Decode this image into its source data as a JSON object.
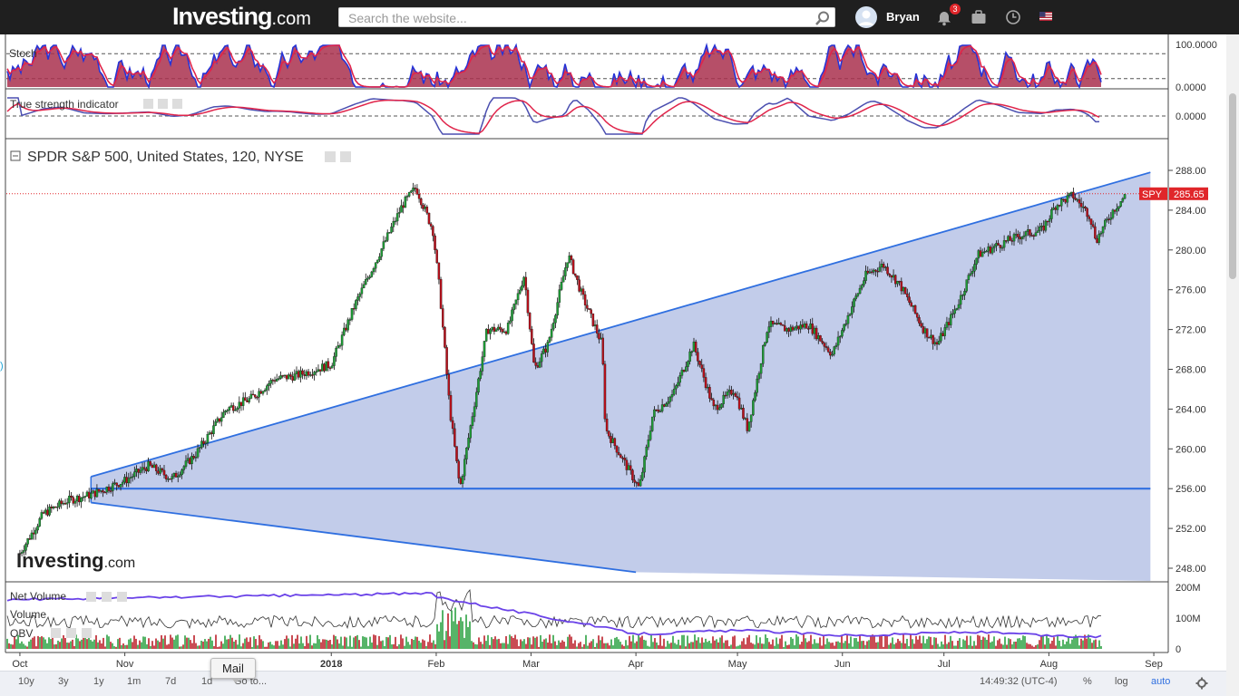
{
  "site": {
    "logo_text": "Investing",
    "logo_suffix": ".com",
    "search_placeholder": "Search the website...",
    "username": "Bryan",
    "notifications_count": "3"
  },
  "panes": {
    "stoch_label": "Stoch",
    "stoch_scale": [
      "100.0000",
      "0.0000"
    ],
    "tsi_label": "True strength indicator",
    "tsi_scale": "0.0000",
    "main_label": "SPDR S&P 500, United States, 120, NYSE",
    "net_volume_label": "Net Volume",
    "volume_label": "Volume",
    "obv_label": "OBV",
    "vol_scale": [
      "200M",
      "100M",
      "0"
    ],
    "watermark": "Investing",
    "watermark_suffix": ".com"
  },
  "bottom": {
    "ranges": [
      "10y",
      "3y",
      "1y",
      "1m",
      "7d",
      "1d",
      "Go to..."
    ],
    "time": "14:49:32 (UTC-4)",
    "pct": "%",
    "log": "log",
    "auto": "auto",
    "tooltip": "Mail"
  },
  "chart_data": {
    "type": "candlestick",
    "title": "SPDR S&P 500, United States, 120, NYSE",
    "symbol": "SPY",
    "last_price": 285.65,
    "ylim": [
      247,
      289
    ],
    "y_ticks": [
      288.0,
      284.0,
      280.0,
      276.0,
      272.0,
      268.0,
      264.0,
      260.0,
      256.0,
      252.0,
      248.0
    ],
    "x_ticks": [
      "Oct",
      "Nov",
      "2018",
      "Feb",
      "Mar",
      "Apr",
      "May",
      "Jun",
      "Jul",
      "Aug",
      "Sep"
    ],
    "price_path": [
      {
        "date": "2017-10-01",
        "price": 249.5
      },
      {
        "date": "2017-10-08",
        "price": 253.5
      },
      {
        "date": "2017-10-15",
        "price": 254.8
      },
      {
        "date": "2017-10-22",
        "price": 255.4
      },
      {
        "date": "2017-11-01",
        "price": 256.8
      },
      {
        "date": "2017-11-08",
        "price": 258.3
      },
      {
        "date": "2017-11-15",
        "price": 257.0
      },
      {
        "date": "2017-11-22",
        "price": 259.5
      },
      {
        "date": "2017-12-01",
        "price": 264.0
      },
      {
        "date": "2017-12-08",
        "price": 265.0
      },
      {
        "date": "2017-12-15",
        "price": 267.0
      },
      {
        "date": "2017-12-22",
        "price": 267.4
      },
      {
        "date": "2018-01-01",
        "price": 268.5
      },
      {
        "date": "2018-01-08",
        "price": 274.5
      },
      {
        "date": "2018-01-15",
        "price": 279.5
      },
      {
        "date": "2018-01-22",
        "price": 284.5
      },
      {
        "date": "2018-01-26",
        "price": 286.3
      },
      {
        "date": "2018-01-31",
        "price": 282.0
      },
      {
        "date": "2018-02-02",
        "price": 276.0
      },
      {
        "date": "2018-02-05",
        "price": 264.0
      },
      {
        "date": "2018-02-08",
        "price": 256.0
      },
      {
        "date": "2018-02-12",
        "price": 264.0
      },
      {
        "date": "2018-02-16",
        "price": 272.0
      },
      {
        "date": "2018-02-22",
        "price": 272.0
      },
      {
        "date": "2018-02-27",
        "price": 277.5
      },
      {
        "date": "2018-03-02",
        "price": 268.0
      },
      {
        "date": "2018-03-06",
        "price": 270.5
      },
      {
        "date": "2018-03-12",
        "price": 279.5
      },
      {
        "date": "2018-03-16",
        "price": 275.5
      },
      {
        "date": "2018-03-22",
        "price": 270.5
      },
      {
        "date": "2018-03-23",
        "price": 262.0
      },
      {
        "date": "2018-03-28",
        "price": 259.0
      },
      {
        "date": "2018-04-02",
        "price": 256.0
      },
      {
        "date": "2018-04-06",
        "price": 263.5
      },
      {
        "date": "2018-04-12",
        "price": 265.5
      },
      {
        "date": "2018-04-18",
        "price": 270.5
      },
      {
        "date": "2018-04-24",
        "price": 264.0
      },
      {
        "date": "2018-04-30",
        "price": 266.0
      },
      {
        "date": "2018-05-04",
        "price": 262.0
      },
      {
        "date": "2018-05-10",
        "price": 272.5
      },
      {
        "date": "2018-05-16",
        "price": 272.0
      },
      {
        "date": "2018-05-22",
        "price": 272.5
      },
      {
        "date": "2018-05-29",
        "price": 269.5
      },
      {
        "date": "2018-06-04",
        "price": 274.5
      },
      {
        "date": "2018-06-08",
        "price": 277.5
      },
      {
        "date": "2018-06-13",
        "price": 278.5
      },
      {
        "date": "2018-06-18",
        "price": 276.5
      },
      {
        "date": "2018-06-25",
        "price": 272.0
      },
      {
        "date": "2018-06-29",
        "price": 270.5
      },
      {
        "date": "2018-07-05",
        "price": 274.5
      },
      {
        "date": "2018-07-11",
        "price": 279.5
      },
      {
        "date": "2018-07-17",
        "price": 280.5
      },
      {
        "date": "2018-07-24",
        "price": 281.5
      },
      {
        "date": "2018-07-30",
        "price": 282.0
      },
      {
        "date": "2018-08-03",
        "price": 284.5
      },
      {
        "date": "2018-08-08",
        "price": 285.5
      },
      {
        "date": "2018-08-13",
        "price": 283.5
      },
      {
        "date": "2018-08-15",
        "price": 281.0
      },
      {
        "date": "2018-08-20",
        "price": 284.0
      },
      {
        "date": "2018-08-24",
        "price": 285.65
      }
    ],
    "trendlines": [
      {
        "name": "upper",
        "from": {
          "date": "2017-10-22",
          "price": 257.2
        },
        "to": {
          "date": "2018-08-31",
          "price": 287.8
        }
      },
      {
        "name": "lower",
        "from": {
          "date": "2017-10-22",
          "price": 254.6
        },
        "to": {
          "date": "2018-04-01",
          "price": 247.6
        }
      },
      {
        "name": "support",
        "from": {
          "date": "2017-10-22",
          "price": 256.0
        },
        "to": {
          "date": "2018-08-31",
          "price": 256.0
        }
      }
    ],
    "indicators": [
      "Stoch",
      "True strength indicator",
      "Net Volume",
      "Volume",
      "OBV"
    ]
  },
  "colors": {
    "up": "#1e9b36",
    "down": "#b7101b",
    "fill": "#b7c3e6",
    "trend": "#2f6fe0",
    "price_tag": "#e0262a",
    "stoch_k": "#2633d6",
    "stoch_d": "#e0244a",
    "tsi_line": "#4b4fb0",
    "tsi_signal": "#e0244a",
    "obv": "#6a42e8"
  }
}
